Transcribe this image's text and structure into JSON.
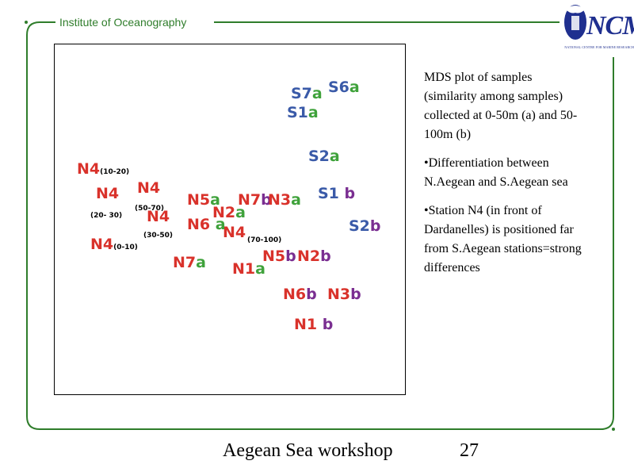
{
  "header": {
    "title": "Institute of Oceanography"
  },
  "logo": {
    "text": "NCMR",
    "subtitle": "NATIONAL CENTRE FOR MARINE RESEARCH"
  },
  "colors": {
    "frame": "#2f7d2b",
    "shallow_suffix": "#3fa23b",
    "deep_suffix": "#7a2e91",
    "north": "#d9322b",
    "south": "#3a5aa8"
  },
  "plot": {
    "points": [
      {
        "station": "S7",
        "suffix": "a",
        "color": "blue",
        "sfx_color": "green"
      },
      {
        "station": "S6",
        "suffix": "a",
        "color": "blue",
        "sfx_color": "green"
      },
      {
        "station": "S1",
        "suffix": "a",
        "color": "blue",
        "sfx_color": "green"
      },
      {
        "station": "S2",
        "suffix": "a",
        "color": "blue",
        "sfx_color": "green"
      },
      {
        "station": "S1",
        "suffix": "b",
        "color": "blue",
        "sfx_color": "purple"
      },
      {
        "station": "S2",
        "suffix": "b",
        "color": "blue",
        "sfx_color": "purple"
      },
      {
        "station": "N4",
        "suffix": "",
        "note": "(10-20)",
        "color": "red"
      },
      {
        "station": "N4",
        "suffix": "",
        "note": "(20- 30)",
        "color": "red"
      },
      {
        "station": "N4",
        "suffix": "",
        "note": "(50-70)",
        "color": "red"
      },
      {
        "station": "N4",
        "suffix": "",
        "note": "(30-50)",
        "color": "red"
      },
      {
        "station": "N4",
        "suffix": "",
        "note": "(0-10)",
        "color": "red"
      },
      {
        "station": "N4",
        "suffix": "",
        "note": "(70-100)",
        "color": "red"
      },
      {
        "station": "N5",
        "suffix": "a",
        "color": "red",
        "sfx_color": "green"
      },
      {
        "station": "N7",
        "suffix": "b",
        "color": "red",
        "sfx_color": "purple"
      },
      {
        "station": "N3",
        "suffix": "a",
        "color": "red",
        "sfx_color": "green"
      },
      {
        "station": "N6",
        "suffix": "a",
        "color": "red",
        "sfx_color": "green"
      },
      {
        "station": "N2",
        "suffix": "a",
        "color": "red",
        "sfx_color": "green"
      },
      {
        "station": "N7",
        "suffix": "a",
        "color": "red",
        "sfx_color": "green"
      },
      {
        "station": "N1",
        "suffix": "a",
        "color": "red",
        "sfx_color": "green"
      },
      {
        "station": "N5",
        "suffix": "b",
        "color": "red",
        "sfx_color": "purple"
      },
      {
        "station": "N2",
        "suffix": "b",
        "color": "red",
        "sfx_color": "purple"
      },
      {
        "station": "N6",
        "suffix": "b",
        "color": "red",
        "sfx_color": "purple"
      },
      {
        "station": "N3",
        "suffix": "b",
        "color": "red",
        "sfx_color": "purple"
      },
      {
        "station": "N1",
        "suffix": "b",
        "color": "red",
        "sfx_color": "purple"
      }
    ]
  },
  "description": {
    "para1": "MDS plot of samples (similarity among samples) collected at 0-50m (a) and 50-100m (b)",
    "para2": "•Differentiation between N.Aegean and S.Aegean sea",
    "para3": "•Station N4 (in front of Dardanelles) is positioned far from S.Aegean stations=strong differences"
  },
  "footer": {
    "title": "Aegean Sea workshop",
    "page": "27"
  }
}
